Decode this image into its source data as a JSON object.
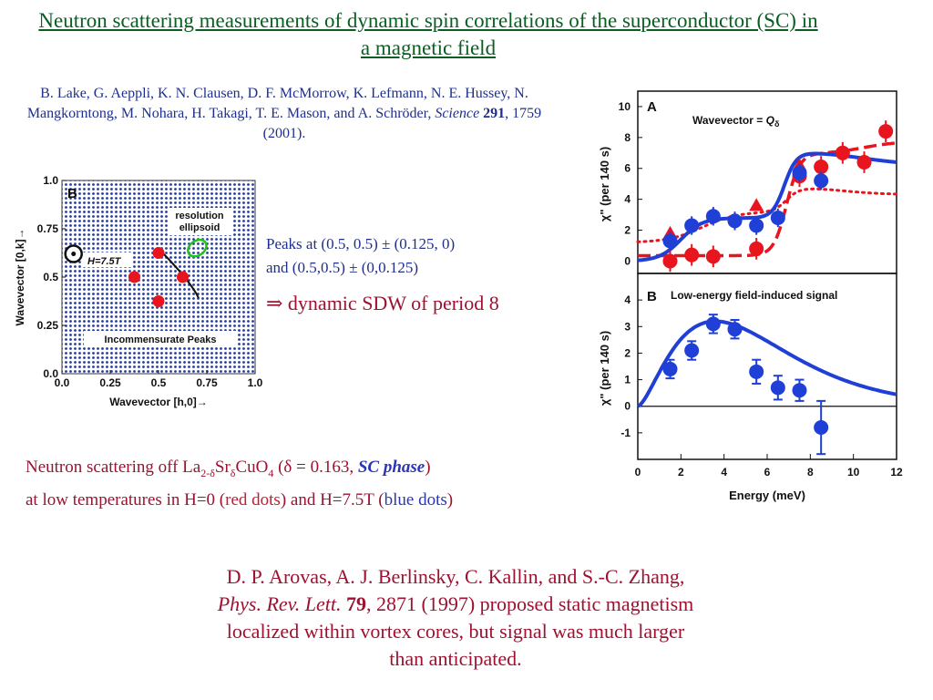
{
  "title": "Neutron scattering measurements of dynamic spin correlations of the superconductor (SC) in a magnetic field",
  "reference": {
    "authors": "B. Lake, G. Aeppli, K. N. Clausen, D. F. McMorrow, K. Lefmann,    N. E. Hussey, N. Mangkorntong, M. Nohara, H. Takagi, T. E. Mason, and A. Schröder,",
    "journal": "Science",
    "volume": "291",
    "pages_year": ", 1759 (2001)."
  },
  "peaks": {
    "line1": "Peaks at (0.5, 0.5) ± (0.125, 0)",
    "line2": "and (0.5,0.5) ± (0,0.125)",
    "conclusion": "⇒  dynamic SDW of period 8"
  },
  "neutron_note": {
    "prefix": "Neutron scattering off La",
    "sub1": "2-δ",
    "mid1": "Sr",
    "sub2": "δ",
    "mid2": "CuO",
    "sub3": "4",
    "delta": " (δ = 0.163,",
    "sc_phase": "SC  phase",
    "close": ")",
    "line2_prefix": "at low temperatures in H=0 (",
    "red_dots": "red dots",
    "line2_mid": ") and H=7.5T (",
    "blue_dots": "blue dots",
    "line2_end": ")"
  },
  "arovas": {
    "line1": "D. P. Arovas, A. J. Berlinsky, C. Kallin, and S.-C. Zhang,",
    "journal": "Phys. Rev. Lett.",
    "volume": "79",
    "rest1": ", 2871 (1997) proposed static magnetism",
    "line3": "localized within  vortex cores, but signal was much larger",
    "line4": "than anticipated."
  },
  "colors": {
    "title_green": "#0a5e22",
    "ref_blue": "#1f2f8a",
    "dark_red": "#9c1230",
    "red": "#d2142d",
    "blue": "#1f3fd6"
  },
  "chart_data": [
    {
      "type": "scatter",
      "panel": "B",
      "xlabel": "Wavevector [h,0]→",
      "ylabel": "Wavevector [0,k]→",
      "xlim": [
        0.0,
        1.0
      ],
      "ylim": [
        0.0,
        1.0
      ],
      "xticks": [
        "0.0",
        "0.25",
        "0.5",
        "0.75",
        "1.0"
      ],
      "yticks": [
        "0.0",
        "0.25",
        "0.5",
        "0.75",
        "1.0"
      ],
      "annotations": [
        "resolution ellipsoid",
        "H=7.5T",
        "Incommensurate Peaks"
      ],
      "peaks": [
        {
          "x": 0.5,
          "y": 0.625
        },
        {
          "x": 0.375,
          "y": 0.5
        },
        {
          "x": 0.625,
          "y": 0.5
        },
        {
          "x": 0.5,
          "y": 0.375
        }
      ],
      "vortex_marker": {
        "x": 0.06,
        "y": 0.62
      },
      "ellipsoid_center": {
        "x": 0.7,
        "y": 0.65
      }
    },
    {
      "type": "scatter",
      "panel": "A",
      "title": "Wavevector = Qδ",
      "ylabel": "χ\" (per 140 s)",
      "xlim": [
        0,
        12
      ],
      "ylim": [
        -0.8,
        11
      ],
      "yticks": [
        "0",
        "2",
        "4",
        "6",
        "8",
        "10"
      ],
      "series": [
        {
          "name": "blue",
          "x": [
            1.5,
            2.5,
            3.5,
            4.5,
            5.5,
            6.5,
            7.5,
            8.5
          ],
          "y": [
            1.3,
            2.3,
            2.9,
            2.6,
            2.3,
            2.8,
            5.7,
            5.2
          ]
        },
        {
          "name": "red",
          "x": [
            1.5,
            2.5,
            3.5,
            5.5,
            7.5,
            8.5,
            9.5,
            10.5,
            11.5
          ],
          "y": [
            0.0,
            0.4,
            0.3,
            0.8,
            5.5,
            6.1,
            7.0,
            6.4,
            8.4
          ]
        },
        {
          "name": "red-triangles",
          "x": [
            1.5,
            5.5,
            7.5
          ],
          "y": [
            1.8,
            3.6,
            6.2
          ]
        }
      ]
    },
    {
      "type": "scatter",
      "panel": "B",
      "title": "Low-energy field-induced signal",
      "xlabel": "Energy (meV)",
      "ylabel": "χ\" (per 140 s)",
      "xlim": [
        0,
        12
      ],
      "ylim": [
        -2,
        5
      ],
      "xticks": [
        "0",
        "2",
        "4",
        "6",
        "8",
        "10",
        "12"
      ],
      "yticks": [
        "-1",
        "0",
        "1",
        "2",
        "3",
        "4"
      ],
      "series": [
        {
          "name": "blue",
          "x": [
            1.5,
            2.5,
            3.5,
            4.5,
            5.5,
            6.5,
            7.5,
            8.5
          ],
          "y": [
            1.4,
            2.1,
            3.1,
            2.9,
            1.3,
            0.7,
            0.6,
            -0.8
          ],
          "err": [
            0.35,
            0.35,
            0.35,
            0.35,
            0.45,
            0.45,
            0.4,
            1.0
          ]
        }
      ]
    }
  ]
}
